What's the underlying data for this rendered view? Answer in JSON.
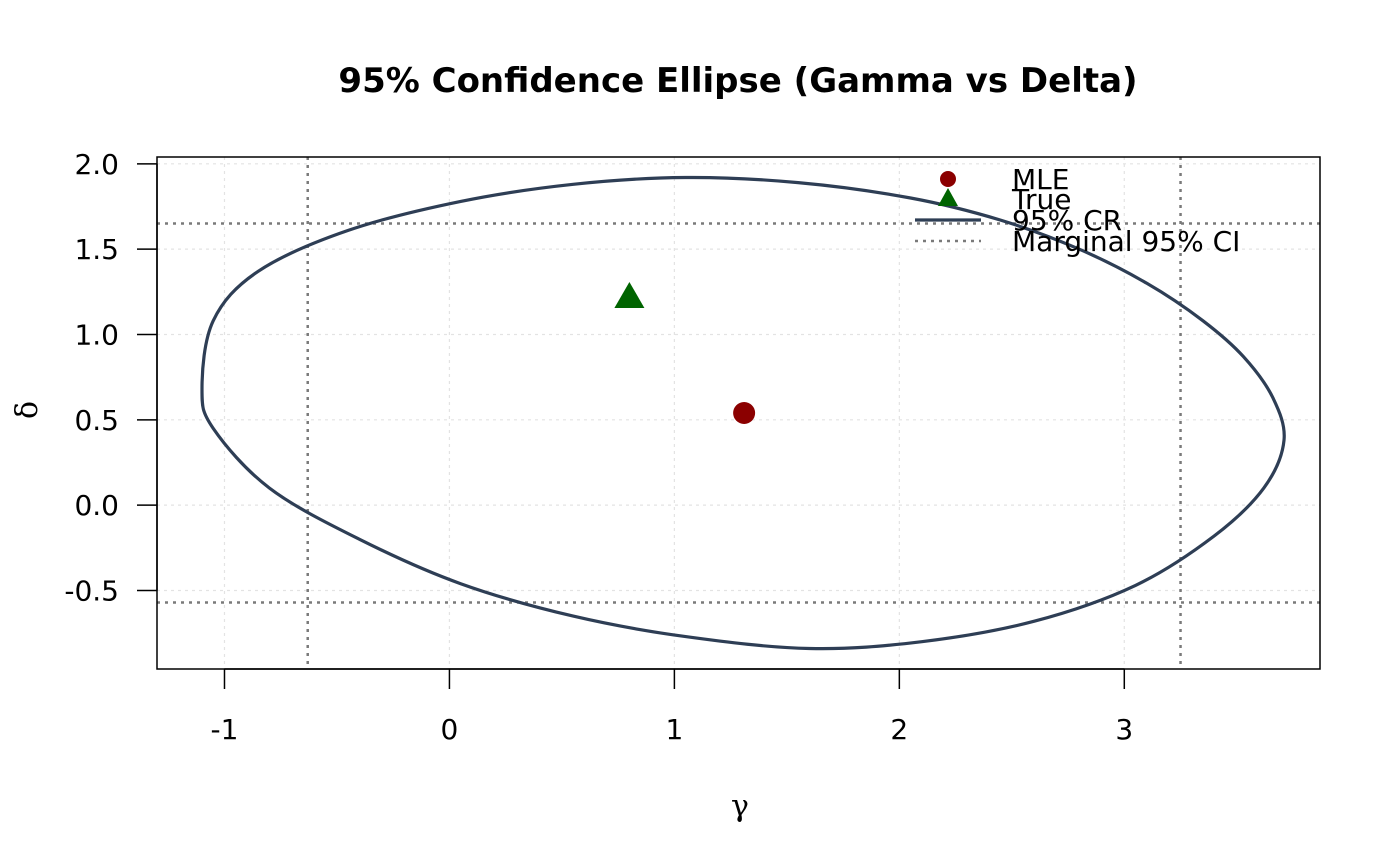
{
  "chart_data": {
    "type": "scatter",
    "title": "95% Confidence Ellipse (Gamma vs Delta)",
    "xlabel": "γ",
    "ylabel": "δ",
    "xlim": [
      -1.3,
      3.87
    ],
    "ylim": [
      -0.96,
      2.04
    ],
    "x_ticks": [
      -1,
      0,
      1,
      2,
      3
    ],
    "x_tick_labels": [
      "-1",
      "0",
      "1",
      "2",
      "3"
    ],
    "y_ticks": [
      -0.5,
      0.0,
      0.5,
      1.0,
      1.5,
      2.0
    ],
    "y_tick_labels": [
      "-0.5",
      "0.0",
      "0.5",
      "1.0",
      "1.5",
      "2.0"
    ],
    "grid": true,
    "legend_position": "top-right",
    "series": [
      {
        "name": "MLE",
        "kind": "point",
        "marker": "circle",
        "color": "#8B0000",
        "x": 1.31,
        "y": 0.54
      },
      {
        "name": "True",
        "kind": "point",
        "marker": "triangle",
        "color": "#006400",
        "x": 0.8,
        "y": 1.22
      },
      {
        "name": "95% CR",
        "kind": "ellipse",
        "color": "#2E3E55",
        "center": [
          1.31,
          0.54
        ],
        "points": [
          [
            3.71,
            0.38
          ],
          [
            3.66,
            0.63
          ],
          [
            3.53,
            0.87
          ],
          [
            3.35,
            1.08
          ],
          [
            3.1,
            1.3
          ],
          [
            2.8,
            1.5
          ],
          [
            2.45,
            1.67
          ],
          [
            2.05,
            1.8
          ],
          [
            1.55,
            1.89
          ],
          [
            1.05,
            1.92
          ],
          [
            0.55,
            1.88
          ],
          [
            0.05,
            1.78
          ],
          [
            -0.45,
            1.61
          ],
          [
            -0.85,
            1.37
          ],
          [
            -1.05,
            1.08
          ],
          [
            -1.1,
            0.68
          ],
          [
            -1.05,
            0.45
          ],
          [
            -0.8,
            0.1
          ],
          [
            -0.4,
            -0.2
          ],
          [
            0.05,
            -0.46
          ],
          [
            0.55,
            -0.65
          ],
          [
            1.05,
            -0.77
          ],
          [
            1.6,
            -0.84
          ],
          [
            2.1,
            -0.8
          ],
          [
            2.6,
            -0.68
          ],
          [
            3.05,
            -0.47
          ],
          [
            3.4,
            -0.18
          ],
          [
            3.62,
            0.1
          ],
          [
            3.71,
            0.38
          ]
        ]
      },
      {
        "name": "Marginal 95% CI",
        "kind": "reference-lines",
        "color": "#7A7A7A",
        "x_values": [
          -0.63,
          3.25
        ],
        "y_values": [
          -0.57,
          1.65
        ]
      }
    ]
  }
}
